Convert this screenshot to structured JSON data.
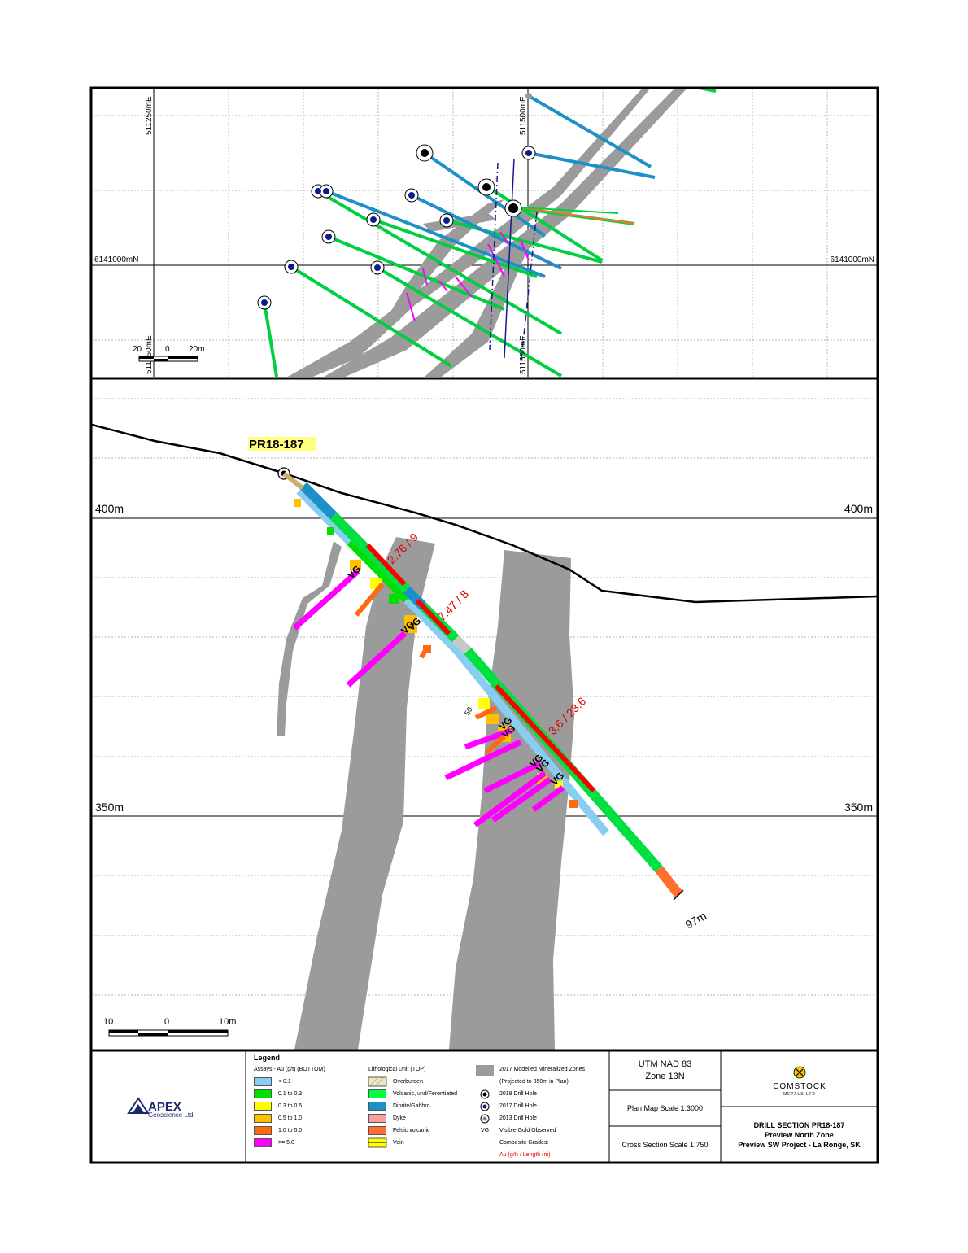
{
  "plan_map": {
    "grid_labels": {
      "easting_left": "511250mE",
      "easting_right": "511500mE",
      "easting_left_bottom": "511250mE",
      "easting_right_bottom": "511500mE",
      "northing_left": "6141000mN",
      "northing_right": "6141000mN"
    },
    "scale_bar": {
      "left": "20",
      "mid": "0",
      "right": "20m"
    }
  },
  "section": {
    "hole_id": "PR18-187",
    "elevation_labels": {
      "upper_left": "400m",
      "upper_right": "400m",
      "lower_left": "350m",
      "lower_right": "350m"
    },
    "composites": [
      {
        "label": "2.76 / 9",
        "grade": 2.76,
        "length_m": 9
      },
      {
        "label": "7.47 / 8",
        "grade": 7.47,
        "length_m": 8
      },
      {
        "label": "3.6 / 23.6",
        "grade": 3.6,
        "length_m": 23.6
      }
    ],
    "vg_marker": "VG",
    "angle_label": "50",
    "end_of_hole": "97m",
    "scale_bar": {
      "left": "10",
      "mid": "0",
      "right": "10m"
    }
  },
  "legend": {
    "title": "Legend",
    "assays": {
      "heading": "Assays - Au (g/t) (BOTTOM)",
      "items": [
        {
          "label": "< 0.1",
          "color": "#87cef0"
        },
        {
          "label": "0.1 to 0.3",
          "color": "#00e000"
        },
        {
          "label": "0.3 to 0.5",
          "color": "#ffff00"
        },
        {
          "label": "0.5 to 1.0",
          "color": "#ffc000"
        },
        {
          "label": "1.0 to 5.0",
          "color": "#ff6a10"
        },
        {
          "label": ">= 5.0",
          "color": "#ff00ff"
        }
      ]
    },
    "lithology": {
      "heading": "Lithological Unit (TOP)",
      "items": [
        {
          "label": "Overburden",
          "color": "#f0e6c0"
        },
        {
          "label": "Volcanic, und/Ferentiated",
          "color": "#00ff40"
        },
        {
          "label": "Diorite/Gabbro",
          "color": "#1e90c8"
        },
        {
          "label": "Dyke",
          "color": "#f4a0a0"
        },
        {
          "label": "Felsic volcanic",
          "color": "#ff7030"
        },
        {
          "label": "Vein",
          "color": "#ffff00"
        }
      ]
    },
    "zones": {
      "modelled": "2017 Modelled Mineralized Zones",
      "projected": "(Projected to 350m in Plan)",
      "hole_2018": "2018 Drill Hole",
      "hole_2017": "2017 Drill Hole",
      "hole_2013": "2013 Drill Hole",
      "vg_code": "VG",
      "vg_label": "Visible Gold Observed",
      "composite_heading": "Composite Grades:",
      "composite_format": "Au (g/t) / Length (m)"
    },
    "projection": {
      "line1": "UTM NAD 83",
      "line2": "Zone 13N",
      "plan_scale": "Plan Map Scale 1:3000",
      "section_scale": "Cross Section Scale 1:750"
    },
    "apex": {
      "main": "APEX",
      "sub": "Geoscience Ltd."
    },
    "comstock": {
      "main": "COMSTOCK",
      "sub": "METALS LTD"
    },
    "title_block": {
      "line1": "DRILL SECTION PR18-187",
      "line2": "Preview North Zone",
      "line3": "Preview SW Project - La Ronge, SK"
    }
  },
  "colors": {
    "zone_gray": "#9b9b9b",
    "frame": "#000000",
    "composite_text": "#e00000"
  }
}
